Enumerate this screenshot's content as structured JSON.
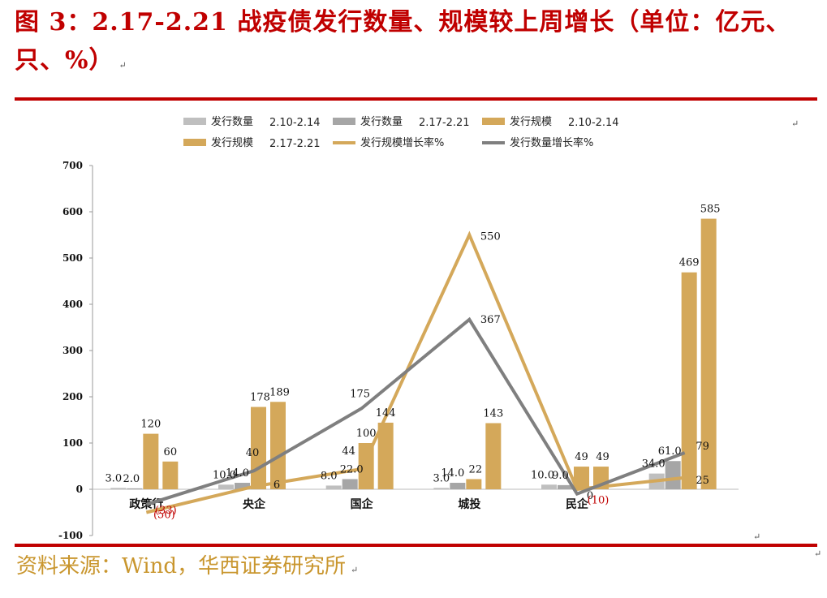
{
  "header": {
    "title": "图 3：2.17-2.21 战疫债发行数量、规模较上周增长（单位：亿元、只、%）"
  },
  "footer": {
    "source": "资料来源：Wind，华西证券研究所"
  },
  "marks": {
    "return": "↵"
  },
  "colors": {
    "title": "#c00000",
    "source": "#c9962e",
    "count_prev": "#bfbfbf",
    "count_curr": "#a6a6a6",
    "scale_prev": "#d4a85a",
    "scale_curr": "#d4a85a",
    "scale_growth_line": "#d4a85a",
    "count_growth_line": "#7f7f7f"
  },
  "chart_data": {
    "type": "bar",
    "categories": [
      "政策行",
      "央企",
      "国企",
      "城投",
      "民企",
      ""
    ],
    "ylim": [
      -100,
      700
    ],
    "yticks": [
      -100,
      0,
      100,
      200,
      300,
      400,
      500,
      600,
      700
    ],
    "grid": false,
    "legend_position": "top",
    "series": [
      {
        "name": "发行数量",
        "period": "2.10-2.14",
        "kind": "bar",
        "color_key": "count_prev",
        "values": [
          3.0,
          10.0,
          8.0,
          3.0,
          10.0,
          34.0
        ],
        "labels": [
          "3.0",
          "10.0",
          "8.0",
          "3.0",
          "10.0",
          "34.0"
        ]
      },
      {
        "name": "发行数量",
        "period": "2.17-2.21",
        "kind": "bar",
        "color_key": "count_curr",
        "values": [
          2.0,
          14.0,
          22.0,
          14.0,
          9.0,
          61.0
        ],
        "labels": [
          "2.0",
          "14.0",
          "22.0",
          "14.0",
          "9.0",
          "61.0"
        ]
      },
      {
        "name": "发行规模",
        "period": "2.10-2.14",
        "kind": "bar",
        "color_key": "scale_prev",
        "values": [
          120,
          178,
          100,
          22,
          49,
          469
        ],
        "labels": [
          "120",
          "178",
          "100",
          "22",
          "49",
          "469"
        ]
      },
      {
        "name": "发行规模",
        "period": "2.17-2.21",
        "kind": "bar",
        "color_key": "scale_curr",
        "values": [
          60,
          189,
          144,
          143,
          49,
          585
        ],
        "labels": [
          "60",
          "189",
          "144",
          "143",
          "49",
          "585"
        ]
      },
      {
        "name": "发行规模增长率%",
        "period": "",
        "kind": "line",
        "color_key": "scale_growth_line",
        "values": [
          -50,
          6,
          44,
          550,
          0,
          25
        ],
        "labels": [
          "(50)",
          "6",
          "44",
          "550",
          "0",
          "25"
        ]
      },
      {
        "name": "发行数量增长率%",
        "period": "",
        "kind": "line",
        "color_key": "count_growth_line",
        "values": [
          -33,
          40,
          175,
          367,
          -10,
          79
        ],
        "labels": [
          "(33)",
          "40",
          "175",
          "367",
          "(10)",
          "79"
        ]
      }
    ]
  }
}
